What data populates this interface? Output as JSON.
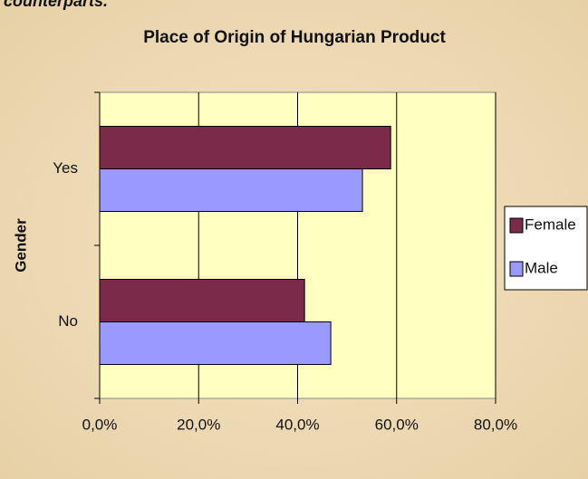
{
  "caption": "counterparts.",
  "chart_data": {
    "type": "hbar",
    "title": "Place of Origin of Hungarian Product",
    "ylabel": "Gender",
    "categories": [
      "Yes",
      "No"
    ],
    "series": [
      {
        "name": "Female",
        "color": "#7b2a4a",
        "values": [
          58.8,
          41.4
        ]
      },
      {
        "name": "Male",
        "color": "#9999ff",
        "values": [
          53.1,
          46.7
        ]
      }
    ],
    "xlim": [
      0,
      80
    ],
    "xticks": [
      {
        "value": 0,
        "label": "0,0%"
      },
      {
        "value": 20,
        "label": "20,0%"
      },
      {
        "value": 40,
        "label": "40,0%"
      },
      {
        "value": 60,
        "label": "60,0%"
      },
      {
        "value": 80,
        "label": "80,0%"
      }
    ],
    "grid": true,
    "legend": "right",
    "plot_bg": "#ffffc0"
  }
}
